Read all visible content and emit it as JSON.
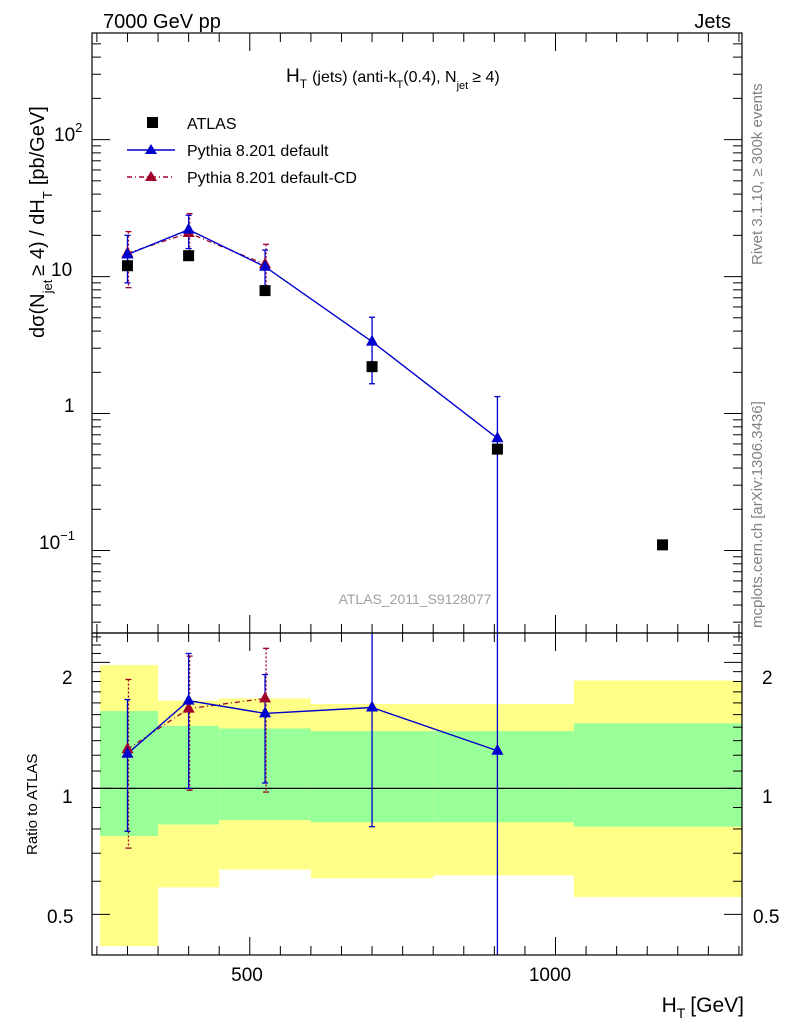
{
  "header": {
    "left": "7000 GeV pp",
    "right": "Jets"
  },
  "side_labels": {
    "rivet": "Rivet 3.1.10, ≥ 300k events",
    "mcplots": "mcplots.cern.ch [arXiv:1306.3436]"
  },
  "colors": {
    "data": "#000000",
    "pythia": "#0000cc",
    "pythia_cd": "#a0002a",
    "band_inner": "#99ff99",
    "band_outer": "#ffff88"
  },
  "chart_data": [
    {
      "type": "line",
      "panel": "main",
      "title": "H_T (jets) (anti-k_T(0.4), N_jet ≥ 4)",
      "title_parts": {
        "H": "H",
        "T_sub": "T",
        "mid": "(jets) (anti-k",
        "kT_sub": "T",
        "cone": "(0.4), N",
        "jet_sub": "jet",
        "tail": "≥ 4)"
      },
      "watermark": "ATLAS_2011_S9128077",
      "ylabel": "dσ(N_jet ≥ 4) / dH_T [pb/GeV]",
      "ylabel_parts": {
        "a": "dσ(N",
        "jet_sub": "jet",
        "b": "≥ 4) / dH",
        "T_sub": "T",
        "c": "[pb/GeV]"
      },
      "yscale": "log",
      "ylim": [
        0.025,
        600
      ],
      "xlim": [
        242,
        1305
      ],
      "ytick_labels": {
        "p100": "10",
        "p100_exp": "2",
        "p10": "10",
        "p1": "1",
        "p01": "10",
        "p01_exp": "−1"
      },
      "legend": [
        "ATLAS",
        "Pythia 8.201 default",
        "Pythia 8.201 default-CD"
      ],
      "legend_position": "top-left",
      "series": [
        {
          "name": "ATLAS",
          "marker": "square",
          "x": [
            300,
            400,
            525,
            700,
            905,
            1175
          ],
          "y": [
            12.0,
            14.2,
            7.9,
            2.2,
            0.55,
            0.11
          ]
        },
        {
          "name": "Pythia 8.201 default",
          "marker": "triangle",
          "x": [
            300,
            400,
            525,
            700,
            905
          ],
          "y": [
            14.5,
            22.0,
            11.8,
            3.35,
            0.66
          ],
          "yerr_up": [
            5.5,
            6.0,
            3.8,
            1.7,
            0.67
          ],
          "yerr_down": [
            5.5,
            6.0,
            3.8,
            1.7,
            0.66
          ]
        },
        {
          "name": "Pythia 8.201 default-CD",
          "marker": "triangle",
          "x": [
            300,
            400,
            525
          ],
          "y": [
            14.8,
            20.8,
            12.3
          ],
          "yerr_up": [
            6.5,
            8.0,
            4.9
          ],
          "yerr_down": [
            6.5,
            7.5,
            4.9
          ]
        }
      ]
    },
    {
      "type": "line",
      "panel": "ratio",
      "ylabel": "Ratio to ATLAS",
      "xlabel": "H_T [GeV]",
      "xlabel_parts": {
        "H": "H",
        "T_sub": "T",
        "unit": "[GeV]"
      },
      "yscale": "log",
      "ylim": [
        0.4,
        2.35
      ],
      "xlim": [
        242,
        1305
      ],
      "yticks": [
        0.5,
        1,
        2
      ],
      "ytick_labels": [
        "0.5",
        "1",
        "2"
      ],
      "xticks": [
        500,
        1000
      ],
      "xtick_labels": [
        "500",
        "1000"
      ],
      "reference_line": 1,
      "bands": [
        {
          "x_low": 255,
          "x_high": 350,
          "inner": [
            0.77,
            1.53
          ],
          "outer": [
            0.42,
            1.97
          ]
        },
        {
          "x_low": 350,
          "x_high": 450,
          "inner": [
            0.82,
            1.41
          ],
          "outer": [
            0.58,
            1.62
          ]
        },
        {
          "x_low": 450,
          "x_high": 600,
          "inner": [
            0.84,
            1.39
          ],
          "outer": [
            0.64,
            1.64
          ]
        },
        {
          "x_low": 600,
          "x_high": 800,
          "inner": [
            0.83,
            1.37
          ],
          "outer": [
            0.61,
            1.59
          ]
        },
        {
          "x_low": 800,
          "x_high": 1030,
          "inner": [
            0.83,
            1.37
          ],
          "outer": [
            0.62,
            1.59
          ]
        },
        {
          "x_low": 1030,
          "x_high": 1305,
          "inner": [
            0.81,
            1.43
          ],
          "outer": [
            0.55,
            1.81
          ]
        }
      ],
      "series": [
        {
          "name": "Pythia 8.201 default",
          "x": [
            300,
            400,
            525,
            700,
            905
          ],
          "y": [
            1.21,
            1.62,
            1.51,
            1.56,
            1.23
          ],
          "yerr_up": [
            0.42,
            0.48,
            0.36,
            0.84,
            1.2
          ],
          "yerr_down": [
            0.42,
            0.62,
            0.48,
            0.75,
            0.95
          ]
        },
        {
          "name": "Pythia 8.201 default-CD",
          "x": [
            300,
            400,
            525
          ],
          "y": [
            1.24,
            1.55,
            1.64
          ],
          "yerr_up": [
            0.58,
            0.52,
            0.52
          ],
          "yerr_down": [
            0.52,
            0.56,
            0.66
          ]
        }
      ]
    }
  ]
}
